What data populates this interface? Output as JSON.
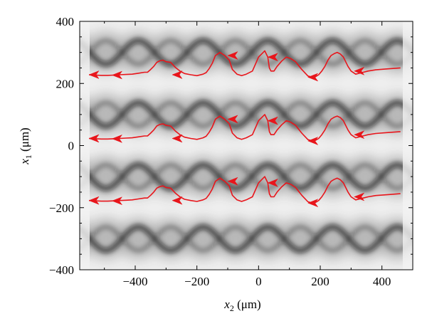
{
  "chart_data": {
    "type": "line",
    "xlabel_var": "x",
    "xlabel_sub": "2",
    "xlabel_unit": " (μm)",
    "ylabel_var": "x",
    "ylabel_sub": "1",
    "ylabel_unit": " (μm)",
    "xlim": [
      -580,
      500
    ],
    "ylim": [
      -400,
      400
    ],
    "xticks": [
      -400,
      -200,
      0,
      200,
      400
    ],
    "xtick_labels": [
      "−400",
      "−200",
      "0",
      "200",
      "400"
    ],
    "yticks": [
      -400,
      -200,
      0,
      200,
      400
    ],
    "ytick_labels": [
      "−400",
      "−200",
      "0",
      "200",
      "400"
    ],
    "grid": false,
    "background": "grayscale wave intensity pattern",
    "series_color": "#e8151b",
    "series": [
      {
        "x": [
          460,
          420,
          380,
          355,
          335,
          315,
          300,
          290,
          275,
          265,
          255,
          245,
          235,
          225,
          215,
          205,
          195,
          185,
          175,
          160,
          140,
          120,
          105,
          90,
          75,
          60,
          50,
          40,
          35,
          30,
          20,
          0,
          -20,
          -40,
          -55,
          -70,
          -85,
          -95,
          -110,
          -125,
          -140,
          -150,
          -160,
          -170,
          -180,
          -200,
          -220,
          -240,
          -255,
          -270,
          -285,
          -300,
          -310,
          -320,
          -330,
          -340,
          -350,
          -360,
          -370,
          -390,
          -410,
          -430,
          -450,
          -470,
          -490,
          -510,
          -550
        ],
        "y": [
          250,
          247,
          244,
          240,
          235,
          230,
          240,
          255,
          285,
          295,
          300,
          296,
          290,
          275,
          255,
          240,
          228,
          222,
          220,
          224,
          245,
          270,
          280,
          285,
          272,
          255,
          240,
          240,
          250,
          285,
          305,
          285,
          240,
          230,
          225,
          230,
          245,
          275,
          290,
          300,
          290,
          265,
          248,
          235,
          230,
          225,
          228,
          232,
          240,
          252,
          268,
          270,
          275,
          273,
          268,
          255,
          245,
          236,
          236,
          233,
          230,
          229,
          228,
          227,
          226,
          226,
          228
        ]
      },
      {
        "x": [
          460,
          420,
          380,
          355,
          335,
          315,
          300,
          290,
          275,
          265,
          255,
          245,
          235,
          225,
          215,
          205,
          195,
          185,
          175,
          160,
          140,
          120,
          105,
          90,
          75,
          60,
          50,
          40,
          35,
          30,
          20,
          0,
          -20,
          -40,
          -55,
          -70,
          -85,
          -95,
          -110,
          -125,
          -140,
          -150,
          -160,
          -170,
          -180,
          -200,
          -220,
          -240,
          -255,
          -270,
          -285,
          -300,
          -310,
          -320,
          -330,
          -340,
          -350,
          -360,
          -370,
          -390,
          -410,
          -430,
          -450,
          -470,
          -490,
          -510,
          -550
        ],
        "y": [
          45,
          42,
          39,
          35,
          30,
          25,
          35,
          50,
          80,
          90,
          95,
          91,
          85,
          70,
          50,
          35,
          23,
          17,
          15,
          19,
          40,
          65,
          75,
          80,
          67,
          50,
          35,
          35,
          45,
          80,
          100,
          80,
          35,
          25,
          20,
          25,
          40,
          70,
          85,
          95,
          85,
          60,
          43,
          30,
          25,
          20,
          23,
          27,
          35,
          47,
          63,
          65,
          70,
          68,
          63,
          50,
          40,
          31,
          31,
          28,
          25,
          24,
          23,
          22,
          21,
          21,
          23
        ]
      },
      {
        "x": [
          460,
          420,
          380,
          355,
          335,
          315,
          300,
          290,
          275,
          265,
          255,
          245,
          235,
          225,
          215,
          205,
          195,
          185,
          175,
          160,
          140,
          120,
          105,
          90,
          75,
          60,
          50,
          40,
          35,
          30,
          20,
          0,
          -20,
          -40,
          -55,
          -70,
          -85,
          -95,
          -110,
          -125,
          -140,
          -150,
          -160,
          -170,
          -180,
          -200,
          -220,
          -240,
          -255,
          -270,
          -285,
          -300,
          -310,
          -320,
          -330,
          -340,
          -350,
          -360,
          -370,
          -390,
          -410,
          -430,
          -450,
          -470,
          -490,
          -510,
          -550
        ],
        "y": [
          -155,
          -158,
          -161,
          -165,
          -170,
          -175,
          -165,
          -150,
          -120,
          -110,
          -105,
          -109,
          -115,
          -130,
          -150,
          -165,
          -177,
          -183,
          -185,
          -181,
          -160,
          -135,
          -125,
          -120,
          -133,
          -150,
          -165,
          -165,
          -155,
          -120,
          -100,
          -120,
          -165,
          -175,
          -180,
          -175,
          -160,
          -130,
          -115,
          -105,
          -115,
          -140,
          -157,
          -170,
          -175,
          -180,
          -177,
          -173,
          -165,
          -153,
          -137,
          -135,
          -130,
          -132,
          -137,
          -150,
          -160,
          -169,
          -169,
          -172,
          -175,
          -176,
          -177,
          -178,
          -179,
          -179,
          -177
        ]
      }
    ],
    "arrow_points": [
      [
        [
          310,
          240
        ],
        [
          160,
          220
        ],
        [
          30,
          285
        ],
        [
          -100,
          290
        ],
        [
          -280,
          228
        ],
        [
          -475,
          227
        ],
        [
          -550,
          228
        ]
      ],
      [
        [
          310,
          35
        ],
        [
          160,
          15
        ],
        [
          30,
          80
        ],
        [
          -100,
          85
        ],
        [
          -280,
          23
        ],
        [
          -475,
          22
        ],
        [
          -550,
          23
        ]
      ],
      [
        [
          310,
          -165
        ],
        [
          160,
          -185
        ],
        [
          30,
          -120
        ],
        [
          -100,
          -115
        ],
        [
          -280,
          -177
        ],
        [
          -475,
          -178
        ],
        [
          -550,
          -177
        ]
      ]
    ]
  }
}
